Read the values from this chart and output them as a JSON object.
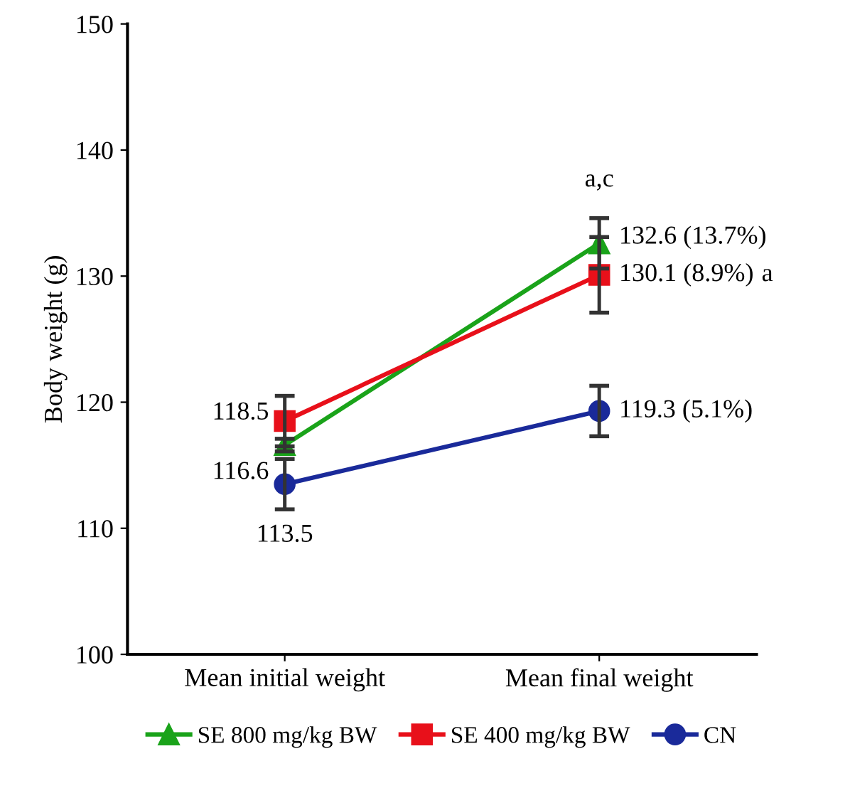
{
  "chart_data": {
    "type": "line",
    "ylabel": "Body weight (g)",
    "categories": [
      "Mean initial weight",
      "Mean final weight"
    ],
    "ylim": [
      100,
      150
    ],
    "yticks": [
      100,
      110,
      120,
      130,
      140,
      150
    ],
    "grid": false,
    "legend": "bottom",
    "series": [
      {
        "name": "SE 800 mg/kg BW",
        "color": "#1aa31a",
        "marker": "triangle",
        "values": [
          116.6,
          132.6
        ],
        "errors": [
          0.5,
          2
        ],
        "value_labels": [
          "116.6",
          "132.6 (13.7%)"
        ]
      },
      {
        "name": "SE 400 mg/kg BW",
        "color": "#e8101a",
        "marker": "square",
        "values": [
          118.5,
          130.1
        ],
        "errors": [
          2,
          3
        ],
        "value_labels": [
          "118.5",
          "130.1 (8.9%)"
        ]
      },
      {
        "name": "CN",
        "color": "#1a2a9a",
        "marker": "circle",
        "values": [
          113.5,
          119.3
        ],
        "errors": [
          2,
          2
        ],
        "value_labels": [
          "113.5",
          "119.3 (5.1%)"
        ]
      }
    ],
    "annotations": [
      "a,c",
      "a"
    ]
  }
}
